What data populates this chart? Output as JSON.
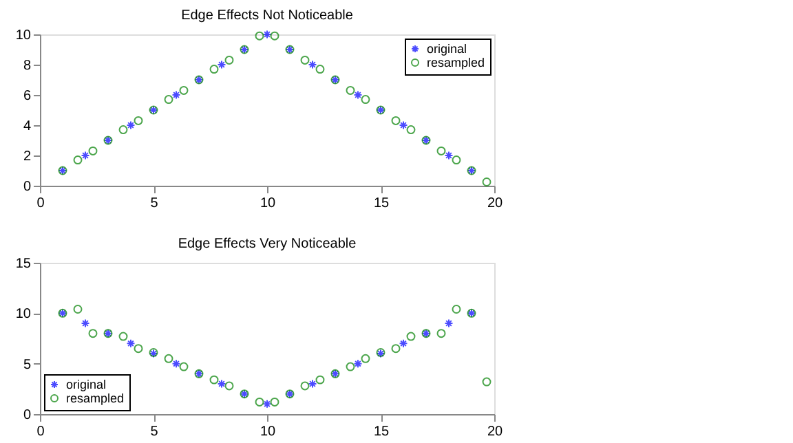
{
  "chart_data": [
    {
      "type": "scatter",
      "title": "Edge Effects Not Noticeable",
      "xlim": [
        0,
        20
      ],
      "xticks": [
        0,
        5,
        10,
        15,
        20
      ],
      "ylim": [
        0,
        10
      ],
      "yticks": [
        0,
        2,
        4,
        6,
        8,
        10
      ],
      "grid": false,
      "legend": "top right",
      "series": [
        {
          "name": "original",
          "color": "#0000ff",
          "marker": "cross",
          "x": [
            1,
            2,
            3,
            4,
            5,
            6,
            7,
            8,
            9,
            10,
            11,
            12,
            13,
            14,
            15,
            16,
            17,
            18,
            19
          ],
          "values": [
            1,
            2,
            3,
            4,
            5,
            6,
            7,
            8,
            9,
            10,
            9,
            8,
            7,
            6,
            5,
            4,
            3,
            2,
            1
          ]
        },
        {
          "name": "resampled",
          "color": "#008000",
          "marker": "circle",
          "x": [
            1,
            1.667,
            2.333,
            3,
            3.667,
            4.333,
            5,
            5.667,
            6.333,
            7,
            7.667,
            8.333,
            9,
            9.667,
            10.333,
            11,
            11.667,
            12.333,
            13,
            13.667,
            14.333,
            15,
            15.667,
            16.333,
            17,
            17.667,
            18.333,
            19,
            19.667
          ],
          "values": [
            1,
            1.7,
            2.3,
            3,
            3.7,
            4.3,
            5,
            5.7,
            6.3,
            7,
            7.7,
            8.3,
            9,
            9.9,
            9.9,
            9,
            8.3,
            7.7,
            7,
            6.3,
            5.7,
            5,
            4.3,
            3.7,
            3,
            2.3,
            1.7,
            1,
            0.25
          ]
        }
      ]
    },
    {
      "type": "scatter",
      "title": "Edge Effects Very Noticeable",
      "xlim": [
        0,
        20
      ],
      "xticks": [
        0,
        5,
        10,
        15,
        20
      ],
      "ylim": [
        0,
        15
      ],
      "yticks": [
        0,
        5,
        10,
        15
      ],
      "grid": false,
      "legend": "bottom left",
      "series": [
        {
          "name": "original",
          "color": "#0000ff",
          "marker": "cross",
          "x": [
            1,
            2,
            3,
            4,
            5,
            6,
            7,
            8,
            9,
            10,
            11,
            12,
            13,
            14,
            15,
            16,
            17,
            18,
            19
          ],
          "values": [
            10,
            9,
            8,
            7,
            6,
            5,
            4,
            3,
            2,
            1,
            2,
            3,
            4,
            5,
            6,
            7,
            8,
            9,
            10
          ]
        },
        {
          "name": "resampled",
          "color": "#008000",
          "marker": "circle",
          "x": [
            1,
            1.667,
            2.333,
            3,
            3.667,
            4.333,
            5,
            5.667,
            6.333,
            7,
            7.667,
            8.333,
            9,
            9.667,
            10.333,
            11,
            11.667,
            12.333,
            13,
            13.667,
            14.333,
            15,
            15.667,
            16.333,
            17,
            17.667,
            18.333,
            19,
            19.667
          ],
          "values": [
            10,
            10.4,
            8,
            8,
            7.7,
            6.5,
            6.1,
            5.5,
            4.7,
            4,
            3.4,
            2.8,
            2,
            1.2,
            1.2,
            2,
            2.8,
            3.4,
            4,
            4.7,
            5.5,
            6.1,
            6.5,
            7.7,
            8,
            8,
            10.4,
            10,
            3.2
          ]
        }
      ]
    }
  ]
}
